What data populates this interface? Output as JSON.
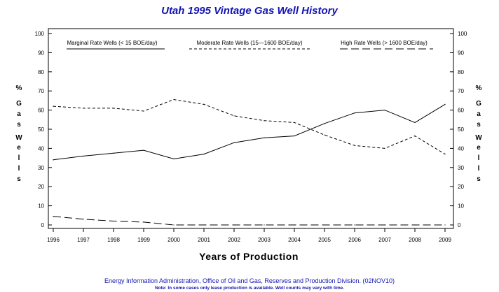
{
  "chart_data": {
    "type": "line",
    "title": "Utah 1995 Vintage Gas Well History",
    "xlabel": "Years of Production",
    "ylabel_letters": [
      "%",
      "G",
      "a",
      "s",
      "W",
      "e",
      "l",
      "l",
      "s"
    ],
    "categories": [
      "1996",
      "1997",
      "1998",
      "1999",
      "2000",
      "2001",
      "2002",
      "2003",
      "2004",
      "2005",
      "2006",
      "2007",
      "2008",
      "2009"
    ],
    "ylim": [
      0,
      100
    ],
    "yticks": [
      "0",
      "10",
      "20",
      "30",
      "40",
      "50",
      "60",
      "70",
      "80",
      "90",
      "100"
    ],
    "grid": false,
    "series": [
      {
        "name": "Marginal Rate Wells (< 15 BOE/day)",
        "style": "solid",
        "values": [
          34,
          36,
          37.5,
          39,
          34.5,
          37,
          43,
          45.5,
          46.5,
          53,
          58.5,
          60,
          53.5,
          63
        ]
      },
      {
        "name": "Moderate Rate Wells (15—1600 BOE/day)",
        "style": "dashed",
        "values": [
          62,
          61,
          61,
          59.5,
          65.5,
          63,
          57,
          54.5,
          53.5,
          47,
          41.5,
          40,
          46.5,
          37
        ]
      },
      {
        "name": "High Rate Wells (> 1600 BOE/day)",
        "style": "longdash",
        "values": [
          4.5,
          3,
          2,
          1.5,
          0,
          0,
          0,
          0,
          0,
          0,
          0,
          0,
          0,
          0
        ]
      }
    ],
    "legend_placement": "top"
  },
  "footer": {
    "source": "Energy Information Administration, Office of Oil and Gas, Reserves and Production Division. (02NOV10)",
    "note": "Note: In some cases only lease production is available. Well counts may vary with time."
  },
  "colors": {
    "title": "#1414b4",
    "footer": "#1414b4",
    "axis": "#000000"
  }
}
